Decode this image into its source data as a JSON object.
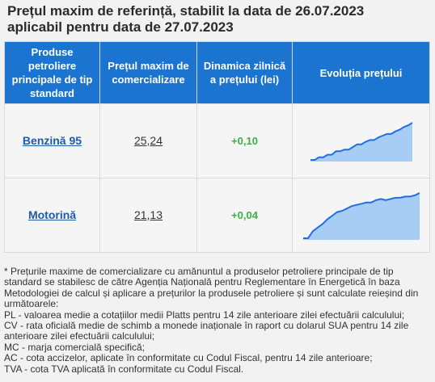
{
  "title_line1": "Prețul maxim de referință, stabilit la data de 26.07.2023",
  "title_line2": "aplicabil pentru data de 27.07.2023",
  "headers": {
    "product": "Produse petroliere principale de tip standard",
    "price": "Prețul maxim de comercializare",
    "change": "Dinamica zilnică a prețului (lei)",
    "trend": "Evoluția prețului"
  },
  "rows": [
    {
      "product": "Benzină 95",
      "price": "25,24",
      "change": "+0,10",
      "trend": [
        1,
        1,
        1.3,
        1.3,
        1.6,
        1.6,
        2.0,
        2.0,
        2.2,
        2.2,
        2.5,
        2.8,
        2.8,
        3.1,
        3.3,
        3.3,
        3.6,
        3.8,
        4.0,
        4.0,
        4.3,
        4.5,
        4.8,
        5.0,
        5.3
      ]
    },
    {
      "product": "Motorină",
      "price": "21,13",
      "change": "+0,04",
      "trend": [
        1,
        1,
        1.6,
        1.9,
        2.2,
        2.6,
        2.9,
        3.2,
        3.3,
        3.5,
        3.7,
        3.8,
        3.9,
        4.0,
        4.0,
        4.2,
        4.3,
        4.2,
        4.3,
        4.4,
        4.4,
        4.5,
        4.5,
        4.6,
        4.8
      ]
    }
  ],
  "colors": {
    "header_bg": "#1b75d0",
    "link": "#1e5aa8",
    "positive": "#3cb043",
    "spark_line": "#1f6fe0",
    "spark_fill": "#a8cdf5"
  },
  "footnote": [
    "* Prețurile maxime de comercializare cu amănuntul a produselor petroliere principale de tip standard se stabilesc de către Agenția Națională pentru Reglementare în Energetică în baza Metodologiei de calcul și aplicare a prețurilor la produsele petroliere și sunt calculate reieșind din următoarele:",
    "PL - valoarea medie a cotațiilor medii Platts pentru 14 zile anterioare zilei efectuării calculului;",
    "CV - rata oficială medie de schimb a monede inaționale în raport cu dolarul SUA pentru 14 zile anterioare zilei efectuării calculului;",
    "MC - marja comercială specifică;",
    "AC - cota accizelor, aplicate în conformitate cu Codul Fiscal, pentru 14 zile anterioare;",
    "TVA - cota TVA aplicată în conformitate cu Codul Fiscal."
  ]
}
